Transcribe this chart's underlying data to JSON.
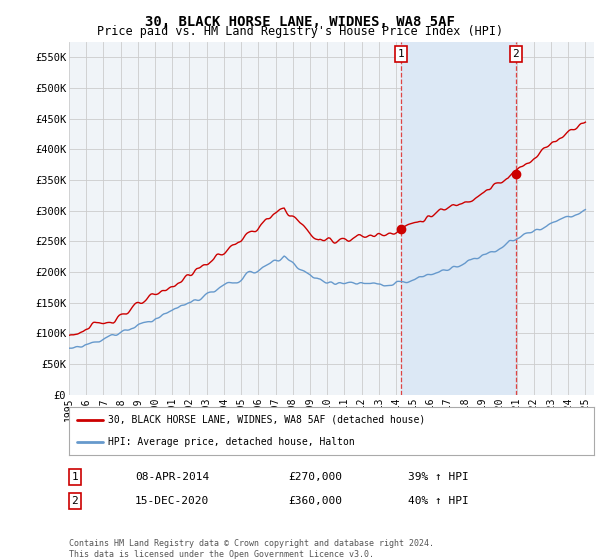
{
  "title": "30, BLACK HORSE LANE, WIDNES, WA8 5AF",
  "subtitle": "Price paid vs. HM Land Registry's House Price Index (HPI)",
  "title_fontsize": 10,
  "subtitle_fontsize": 8.5,
  "ylabel_ticks": [
    "£0",
    "£50K",
    "£100K",
    "£150K",
    "£200K",
    "£250K",
    "£300K",
    "£350K",
    "£400K",
    "£450K",
    "£500K",
    "£550K"
  ],
  "ytick_values": [
    0,
    50000,
    100000,
    150000,
    200000,
    250000,
    300000,
    350000,
    400000,
    450000,
    500000,
    550000
  ],
  "ylim": [
    0,
    575000
  ],
  "xlim_start": 1995.0,
  "xlim_end": 2025.5,
  "marker1_x": 2014.27,
  "marker1_y": 270000,
  "marker2_x": 2020.96,
  "marker2_y": 360000,
  "marker1_label": "1",
  "marker2_label": "2",
  "vline1_x": 2014.27,
  "vline2_x": 2020.96,
  "legend_line1": "30, BLACK HORSE LANE, WIDNES, WA8 5AF (detached house)",
  "legend_line2": "HPI: Average price, detached house, Halton",
  "table_row1_num": "1",
  "table_row1_date": "08-APR-2014",
  "table_row1_price": "£270,000",
  "table_row1_hpi": "39% ↑ HPI",
  "table_row2_num": "2",
  "table_row2_date": "15-DEC-2020",
  "table_row2_price": "£360,000",
  "table_row2_hpi": "40% ↑ HPI",
  "footer": "Contains HM Land Registry data © Crown copyright and database right 2024.\nThis data is licensed under the Open Government Licence v3.0.",
  "red_color": "#cc0000",
  "blue_color": "#6699cc",
  "grid_color": "#cccccc",
  "bg_color": "#ffffff",
  "plot_bg_color": "#f0f4f8",
  "vline_color": "#dd4444",
  "span_color": "#dce8f5",
  "marker_box_color": "#cc0000"
}
